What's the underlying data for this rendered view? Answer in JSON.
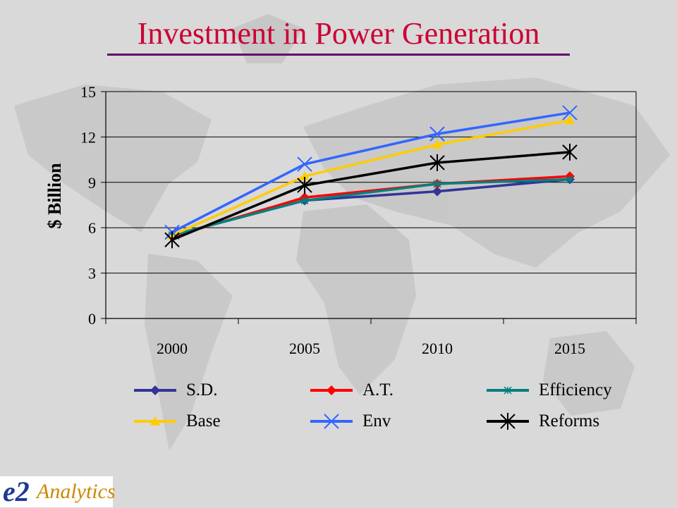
{
  "title": "Investment in Power Generation",
  "ylabel": "$ Billion",
  "logo": {
    "mark": "e2",
    "text": "Analytics"
  },
  "colors": {
    "title": "#cc0033",
    "rule": "#660066",
    "background": "#d9d9d9"
  },
  "chart_data": {
    "type": "line",
    "title": "Investment in Power Generation",
    "xlabel": "",
    "ylabel": "$ Billion",
    "x": [
      "2000",
      "2005",
      "2010",
      "2015"
    ],
    "ylim": [
      0,
      15
    ],
    "yticks": [
      "0",
      "3",
      "6",
      "9",
      "12",
      "15"
    ],
    "grid": "horizontal",
    "legend_position": "bottom",
    "series": [
      {
        "name": "S.D.",
        "values": [
          5.5,
          7.8,
          8.4,
          9.2
        ],
        "color": "#333399",
        "marker": "diamond"
      },
      {
        "name": "A.T.",
        "values": [
          5.4,
          8.0,
          8.9,
          9.4
        ],
        "color": "#ff0000",
        "marker": "diamond"
      },
      {
        "name": "Efficiency",
        "values": [
          5.5,
          7.8,
          8.9,
          9.2
        ],
        "color": "#008080",
        "marker": "star"
      },
      {
        "name": "Base",
        "values": [
          5.5,
          9.4,
          11.5,
          13.1
        ],
        "color": "#ffcc00",
        "marker": "triangle"
      },
      {
        "name": "Env",
        "values": [
          5.7,
          10.2,
          12.2,
          13.6
        ],
        "color": "#3366ff",
        "marker": "x"
      },
      {
        "name": "Reforms",
        "values": [
          5.2,
          8.8,
          10.3,
          11.0
        ],
        "color": "#000000",
        "marker": "asterisk"
      }
    ]
  }
}
